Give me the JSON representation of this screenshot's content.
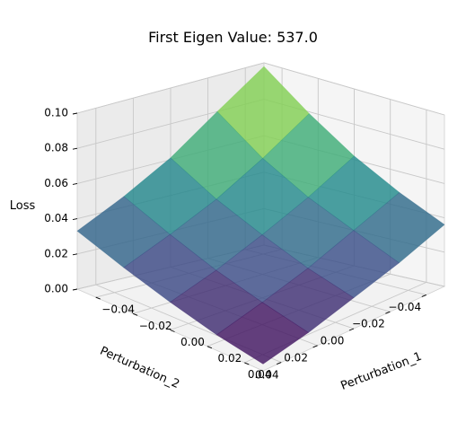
{
  "chart_data": {
    "type": "surface3d",
    "title": "First Eigen Value: 537.0",
    "xlabel": "Perturbation_1",
    "ylabel": "Perturbation_2",
    "zlabel": "Loss",
    "x_ticks": [
      "−0.04",
      "−0.02",
      "0.00",
      "0.02",
      "0.04"
    ],
    "y_ticks": [
      "−0.04",
      "−0.02",
      "0.00",
      "0.02",
      "0.04"
    ],
    "z_ticks": [
      "0.00",
      "0.02",
      "0.04",
      "0.06",
      "0.08",
      "0.10"
    ],
    "x_values": [
      -0.05,
      -0.025,
      0.0,
      0.025,
      0.05
    ],
    "y_values": [
      -0.05,
      -0.025,
      0.0,
      0.025,
      0.05
    ],
    "z_values": [
      [
        0.098,
        0.08,
        0.061,
        0.046,
        0.033
      ],
      [
        0.079,
        0.062,
        0.047,
        0.035,
        0.024
      ],
      [
        0.062,
        0.048,
        0.036,
        0.025,
        0.016
      ],
      [
        0.048,
        0.037,
        0.026,
        0.017,
        0.009
      ],
      [
        0.036,
        0.026,
        0.018,
        0.01,
        0.004
      ]
    ],
    "xlim": [
      -0.05,
      0.05
    ],
    "ylim": [
      -0.05,
      0.05
    ],
    "zlim": [
      0.0,
      0.1
    ],
    "colormap": [
      "#440154",
      "#3b528b",
      "#21918c",
      "#5ec962",
      "#fde725"
    ],
    "grid": true
  }
}
